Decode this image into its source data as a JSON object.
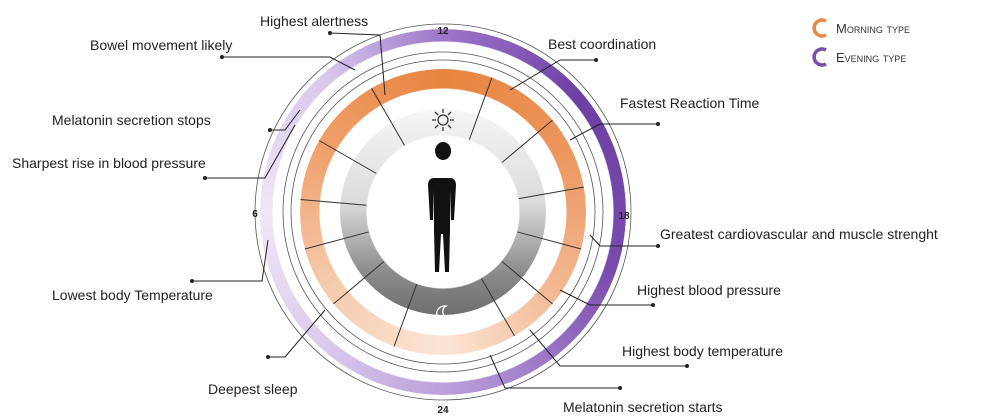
{
  "legend": [
    "Morning type",
    "Evening type"
  ],
  "clock_labels": [
    "12",
    "18",
    "24",
    "6"
  ],
  "events": [
    "Highest alertness",
    "Bowel movement likely",
    "Melatonin secretion stops",
    "Sharpest rise in blood pressure",
    "Lowest body Temperature",
    "Deepest sleep",
    "Best coordination",
    "Fastest Reaction Time",
    "Greatest cardiovascular and muscle strenght",
    "Highest blood pressure",
    "Highest body temperature",
    "Melatonin secretion starts"
  ]
}
